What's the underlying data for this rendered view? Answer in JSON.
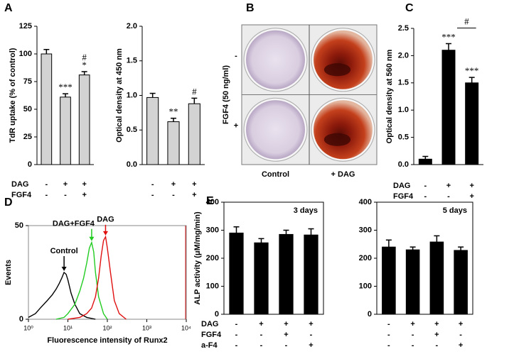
{
  "chart_data": [
    {
      "type": "bar",
      "panel": "A",
      "ylabel": "TdR uptake (% of control)",
      "values": [
        100,
        61,
        81
      ],
      "errors": [
        4,
        3,
        3
      ],
      "bar_labels": [
        [],
        [
          "***"
        ],
        [
          "#",
          "*"
        ]
      ],
      "color": "#d3d3d3",
      "ylim": [
        0,
        125
      ],
      "yticks": [
        0,
        25,
        50,
        75,
        100,
        125
      ],
      "conditions": [
        {
          "name": "DAG",
          "values": [
            "-",
            "+",
            "+"
          ]
        },
        {
          "name": "FGF4",
          "values": [
            "-",
            "-",
            "+"
          ]
        }
      ]
    },
    {
      "type": "bar",
      "ylabel": "Optical density at 450 nm",
      "values": [
        0.97,
        0.62,
        0.88
      ],
      "errors": [
        0.06,
        0.05,
        0.08
      ],
      "bar_labels": [
        [],
        [
          "**"
        ],
        [
          "#"
        ]
      ],
      "color": "#d3d3d3",
      "ylim": [
        0,
        2
      ],
      "yticks": [
        {
          "value": 0,
          "label": "0.0"
        },
        {
          "value": 0.5,
          "label": "0.5"
        },
        {
          "value": 1,
          "label": "1.0"
        },
        {
          "value": 1.5,
          "label": "1.5"
        },
        {
          "value": 2,
          "label": "2.0"
        }
      ],
      "conditions": [
        {
          "values": [
            "-",
            "+",
            "+"
          ]
        },
        {
          "values": [
            "-",
            "-",
            "+"
          ]
        }
      ]
    },
    {
      "type": "photo-grid",
      "panel": "B",
      "ylabel": "FGF4 (50 ng/ml)",
      "rows": [
        "-",
        "+"
      ],
      "columns": [
        "Control",
        "+ DAG"
      ]
    },
    {
      "type": "bar",
      "panel": "C",
      "ylabel": "Optical density at 560 nm",
      "values": [
        0.1,
        2.1,
        1.5
      ],
      "errors": [
        0.05,
        0.12,
        0.1
      ],
      "bar_labels": [
        [],
        [
          "***"
        ],
        [
          "***"
        ]
      ],
      "bracket_label": "#",
      "color": "#000000",
      "ylim": [
        0,
        2.5
      ],
      "yticks": [
        {
          "value": 0,
          "label": "0.0"
        },
        {
          "value": 0.5,
          "label": "0.5"
        },
        {
          "value": 1,
          "label": "1.0"
        },
        {
          "value": 1.5,
          "label": "1.5"
        },
        {
          "value": 2,
          "label": "2.0"
        },
        {
          "value": 2.5,
          "label": "2.5"
        }
      ],
      "conditions": [
        {
          "name": "DAG",
          "values": [
            "-",
            "+",
            "+"
          ]
        },
        {
          "name": "FGF4",
          "values": [
            "-",
            "-",
            "+"
          ]
        }
      ]
    },
    {
      "type": "line",
      "panel": "D",
      "xlabel": "Fluorescence intensity of Runx2",
      "ylabel": "Events",
      "log_x": true,
      "xlim": [
        1,
        10000
      ],
      "xticks": [
        {
          "value": 1,
          "label": "10⁰"
        },
        {
          "value": 10,
          "label": "10¹"
        },
        {
          "value": 100,
          "label": "10²"
        },
        {
          "value": 1000,
          "label": "10³"
        },
        {
          "value": 10000,
          "label": "10⁴"
        }
      ],
      "ylim": [
        0,
        50
      ],
      "yticks": [
        0,
        50
      ],
      "series": [
        {
          "name": "Control",
          "color": "#000000",
          "x": [
            1,
            1.5,
            2,
            3,
            4,
            5,
            6,
            7,
            8,
            9,
            10,
            12,
            15,
            20,
            30,
            50
          ],
          "values": [
            1,
            3,
            6,
            10,
            13,
            16,
            19,
            22,
            25,
            24,
            21,
            14,
            8,
            3,
            1,
            0
          ]
        },
        {
          "name": "DAG+FGF4",
          "color": "#22cc22",
          "x": [
            5,
            8,
            10,
            15,
            20,
            25,
            30,
            35,
            40,
            45,
            50,
            60,
            80,
            100
          ],
          "values": [
            0,
            1,
            3,
            8,
            15,
            22,
            30,
            38,
            41,
            36,
            25,
            12,
            3,
            0
          ]
        },
        {
          "name": "DAG",
          "color": "#e01010",
          "x": [
            10,
            20,
            30,
            40,
            50,
            60,
            70,
            80,
            90,
            100,
            120,
            150,
            200,
            300
          ],
          "values": [
            0,
            1,
            3,
            6,
            12,
            22,
            34,
            42,
            44,
            38,
            25,
            10,
            3,
            0
          ]
        }
      ]
    },
    {
      "type": "bar",
      "panel": "E",
      "ylabel": "ALP activity (μM/mg/min)",
      "subtitle": "3 days",
      "frame": true,
      "values": [
        290,
        255,
        285,
        283
      ],
      "errors": [
        22,
        15,
        15,
        22
      ],
      "color": "#000000",
      "ylim": [
        0,
        400
      ],
      "yticks": [
        0,
        100,
        200,
        300,
        400
      ],
      "conditions": [
        {
          "name": "DAG",
          "values": [
            "-",
            "+",
            "+",
            "+"
          ]
        },
        {
          "name": "FGF4",
          "values": [
            "-",
            "-",
            "+",
            "-"
          ]
        },
        {
          "name": "a-F4",
          "values": [
            "-",
            "-",
            "-",
            "+"
          ]
        }
      ]
    },
    {
      "type": "bar",
      "subtitle": "5 days",
      "frame": true,
      "values": [
        240,
        230,
        258,
        228
      ],
      "errors": [
        25,
        10,
        22,
        12
      ],
      "color": "#000000",
      "ylim": [
        0,
        400
      ],
      "yticks": [
        0,
        100,
        200,
        300,
        400
      ],
      "conditions": [
        {
          "values": [
            "-",
            "+",
            "+",
            "+"
          ]
        },
        {
          "values": [
            "-",
            "-",
            "+",
            "-"
          ]
        },
        {
          "values": [
            "-",
            "-",
            "-",
            "+"
          ]
        }
      ]
    }
  ]
}
